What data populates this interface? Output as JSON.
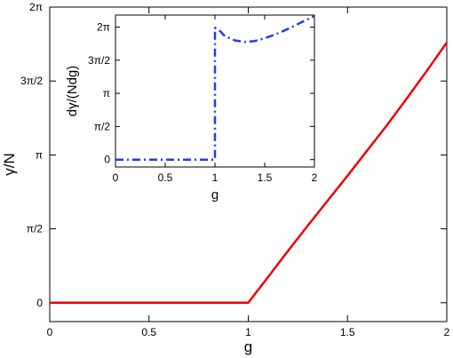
{
  "chart_data": [
    {
      "type": "line",
      "xlabel": "g",
      "ylabel": "γ/N",
      "xlim": [
        0,
        2
      ],
      "ylim": [
        -0.4,
        6.2832
      ],
      "xticks": [
        0,
        0.5,
        1,
        1.5,
        2
      ],
      "xtick_labels": [
        "0",
        "0.5",
        "1",
        "1.5",
        "2"
      ],
      "yticks": [
        0,
        1.5708,
        3.1416,
        4.7124,
        6.2832
      ],
      "ytick_labels": [
        "0",
        "π/2",
        "π",
        "3π/2",
        "2π"
      ],
      "grid": false,
      "series": [
        {
          "color": "#ee0000",
          "style": "solid",
          "x": [
            0,
            0.5,
            1,
            1.1,
            1.2,
            1.3,
            1.4,
            1.5,
            1.6,
            1.7,
            1.8,
            1.9,
            2.0
          ],
          "y": [
            0,
            0,
            0,
            0.55,
            1.1,
            1.64,
            2.17,
            2.7,
            3.24,
            3.78,
            4.35,
            4.93,
            5.53
          ]
        }
      ]
    },
    {
      "type": "line",
      "xlabel": "g",
      "ylabel": "dγ/(Ndg)",
      "xlim": [
        0,
        2
      ],
      "ylim": [
        -0.35,
        6.85
      ],
      "xticks": [
        0,
        0.5,
        1,
        1.5,
        2
      ],
      "xtick_labels": [
        "0",
        "0.5",
        "1",
        "1.5",
        "2"
      ],
      "yticks": [
        0,
        1.5708,
        3.1416,
        4.7124,
        6.2832
      ],
      "ytick_labels": [
        "0",
        "π/2",
        "π",
        "3π/2",
        "2π"
      ],
      "grid": false,
      "series": [
        {
          "color": "#1f3fe8",
          "style": "dash-dot",
          "x": [
            0,
            0.5,
            1.0,
            1.0,
            1.05,
            1.1,
            1.2,
            1.3,
            1.4,
            1.5,
            1.6,
            1.7,
            1.8,
            1.9,
            2.0
          ],
          "y": [
            0,
            0,
            0,
            6.25,
            6.1,
            5.85,
            5.65,
            5.58,
            5.62,
            5.75,
            5.92,
            6.12,
            6.35,
            6.58,
            6.8
          ]
        }
      ]
    }
  ]
}
